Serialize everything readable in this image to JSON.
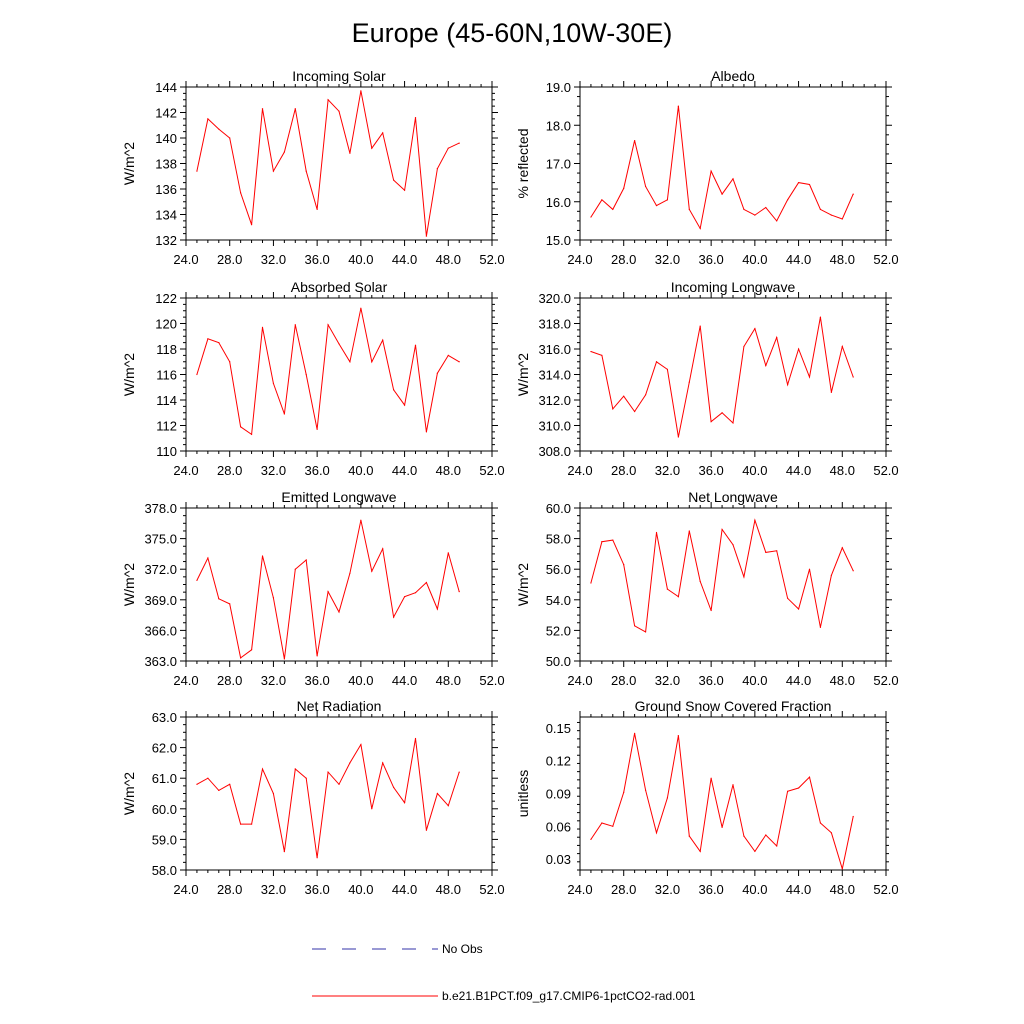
{
  "page": {
    "title": "Europe (45-60N,10W-30E)"
  },
  "legend": {
    "items": [
      {
        "label": "No Obs",
        "color": "#3333aa",
        "style": "dashed"
      },
      {
        "label": "b.e21.B1PCT.f09_g17.CMIP6-1pctCO2-rad.001",
        "color": "#ff0000",
        "style": "solid"
      }
    ]
  },
  "chart_data": [
    {
      "type": "line",
      "title": "Incoming Solar",
      "ylabel": "W/m^2",
      "xlim": [
        24,
        52
      ],
      "ylim": [
        132,
        144
      ],
      "xticks": [
        "24.0",
        "28.0",
        "32.0",
        "36.0",
        "40.0",
        "44.0",
        "48.0",
        "52.0"
      ],
      "yticks": [
        "132",
        "134",
        "136",
        "138",
        "140",
        "142",
        "144"
      ],
      "series": [
        {
          "color": "#ff0000",
          "x": [
            25,
            26,
            27,
            28,
            29,
            30,
            31,
            32,
            33,
            34,
            35,
            36,
            37,
            38,
            39,
            40,
            41,
            42,
            43,
            44,
            45,
            46,
            47,
            48,
            49
          ],
          "y": [
            137.4,
            141.5,
            140.7,
            140.0,
            135.7,
            133.2,
            142.3,
            137.4,
            138.9,
            142.3,
            137.4,
            134.4,
            143.0,
            142.1,
            138.8,
            143.7,
            139.2,
            140.4,
            136.7,
            135.9,
            141.6,
            132.3,
            137.6,
            139.2,
            139.6
          ]
        }
      ]
    },
    {
      "type": "line",
      "title": "Albedo",
      "ylabel": "% reflected",
      "xlim": [
        24,
        52
      ],
      "ylim": [
        15,
        19
      ],
      "xticks": [
        "24.0",
        "28.0",
        "32.0",
        "36.0",
        "40.0",
        "44.0",
        "48.0",
        "52.0"
      ],
      "yticks": [
        "15.0",
        "16.0",
        "17.0",
        "18.0",
        "19.0"
      ],
      "series": [
        {
          "color": "#ff0000",
          "x": [
            25,
            26,
            27,
            28,
            29,
            30,
            31,
            32,
            33,
            34,
            35,
            36,
            37,
            38,
            39,
            40,
            41,
            42,
            43,
            44,
            45,
            46,
            47,
            48,
            49
          ],
          "y": [
            15.6,
            16.05,
            15.8,
            16.35,
            17.6,
            16.4,
            15.9,
            16.05,
            18.5,
            15.8,
            15.3,
            16.8,
            16.2,
            16.6,
            15.8,
            15.65,
            15.85,
            15.5,
            16.05,
            16.5,
            16.45,
            15.8,
            15.65,
            15.55,
            16.2
          ]
        }
      ]
    },
    {
      "type": "line",
      "title": "Absorbed Solar",
      "ylabel": "W/m^2",
      "xlim": [
        24,
        52
      ],
      "ylim": [
        110,
        122
      ],
      "xticks": [
        "24.0",
        "28.0",
        "32.0",
        "36.0",
        "40.0",
        "44.0",
        "48.0",
        "52.0"
      ],
      "yticks": [
        "110",
        "112",
        "114",
        "116",
        "118",
        "120",
        "122"
      ],
      "series": [
        {
          "color": "#ff0000",
          "x": [
            25,
            26,
            27,
            28,
            29,
            30,
            31,
            32,
            33,
            34,
            35,
            36,
            37,
            38,
            39,
            40,
            41,
            42,
            43,
            44,
            45,
            46,
            47,
            48,
            49
          ],
          "y": [
            116.0,
            118.8,
            118.5,
            117.0,
            111.9,
            111.3,
            119.7,
            115.3,
            112.9,
            119.9,
            116.0,
            111.7,
            119.9,
            118.4,
            117.0,
            121.2,
            117.0,
            118.7,
            114.8,
            113.6,
            118.3,
            111.5,
            116.1,
            117.5,
            117.0
          ]
        }
      ]
    },
    {
      "type": "line",
      "title": "Incoming Longwave",
      "ylabel": "W/m^2",
      "xlim": [
        24,
        52
      ],
      "ylim": [
        308,
        320
      ],
      "xticks": [
        "24.0",
        "28.0",
        "32.0",
        "36.0",
        "40.0",
        "44.0",
        "48.0",
        "52.0"
      ],
      "yticks": [
        "308.0",
        "310.0",
        "312.0",
        "314.0",
        "316.0",
        "318.0",
        "320.0"
      ],
      "series": [
        {
          "color": "#ff0000",
          "x": [
            25,
            26,
            27,
            28,
            29,
            30,
            31,
            32,
            33,
            34,
            35,
            36,
            37,
            38,
            39,
            40,
            41,
            42,
            43,
            44,
            45,
            46,
            47,
            48,
            49
          ],
          "y": [
            315.8,
            315.5,
            311.3,
            312.3,
            311.1,
            312.4,
            315.0,
            314.4,
            309.1,
            313.4,
            317.8,
            310.3,
            311.0,
            310.2,
            316.2,
            317.6,
            314.7,
            316.9,
            313.2,
            316.0,
            313.8,
            318.5,
            312.6,
            316.2,
            313.8
          ]
        }
      ]
    },
    {
      "type": "line",
      "title": "Emitted Longwave",
      "ylabel": "W/m^2",
      "xlim": [
        24,
        52
      ],
      "ylim": [
        363,
        378
      ],
      "xticks": [
        "24.0",
        "28.0",
        "32.0",
        "36.0",
        "40.0",
        "44.0",
        "48.0",
        "52.0"
      ],
      "yticks": [
        "363.0",
        "366.0",
        "369.0",
        "372.0",
        "375.0",
        "378.0"
      ],
      "series": [
        {
          "color": "#ff0000",
          "x": [
            25,
            26,
            27,
            28,
            29,
            30,
            31,
            32,
            33,
            34,
            35,
            36,
            37,
            38,
            39,
            40,
            41,
            42,
            43,
            44,
            45,
            46,
            47,
            48,
            49
          ],
          "y": [
            370.9,
            373.1,
            369.1,
            368.6,
            363.3,
            364.1,
            373.3,
            369.2,
            363.2,
            372.0,
            372.9,
            363.5,
            369.8,
            367.8,
            371.6,
            376.8,
            371.8,
            374.0,
            367.3,
            369.3,
            369.7,
            370.7,
            368.1,
            373.6,
            369.8
          ]
        }
      ]
    },
    {
      "type": "line",
      "title": "Net Longwave",
      "ylabel": "W/m^2",
      "xlim": [
        24,
        52
      ],
      "ylim": [
        50,
        60
      ],
      "xticks": [
        "24.0",
        "28.0",
        "32.0",
        "36.0",
        "40.0",
        "44.0",
        "48.0",
        "52.0"
      ],
      "yticks": [
        "50.0",
        "52.0",
        "54.0",
        "56.0",
        "58.0",
        "60.0"
      ],
      "series": [
        {
          "color": "#ff0000",
          "x": [
            25,
            26,
            27,
            28,
            29,
            30,
            31,
            32,
            33,
            34,
            35,
            36,
            37,
            38,
            39,
            40,
            41,
            42,
            43,
            44,
            45,
            46,
            47,
            48,
            49
          ],
          "y": [
            55.1,
            57.8,
            57.9,
            56.3,
            52.3,
            51.9,
            58.4,
            54.7,
            54.2,
            58.5,
            55.2,
            53.3,
            58.6,
            57.6,
            55.5,
            59.2,
            57.1,
            57.2,
            54.1,
            53.4,
            56.0,
            52.2,
            55.6,
            57.4,
            55.9
          ]
        }
      ]
    },
    {
      "type": "line",
      "title": "Net Radiation",
      "ylabel": "W/m^2",
      "xlim": [
        24,
        52
      ],
      "ylim": [
        58,
        63
      ],
      "xticks": [
        "24.0",
        "28.0",
        "32.0",
        "36.0",
        "40.0",
        "44.0",
        "48.0",
        "52.0"
      ],
      "yticks": [
        "58.0",
        "59.0",
        "60.0",
        "61.0",
        "62.0",
        "63.0"
      ],
      "series": [
        {
          "color": "#ff0000",
          "x": [
            25,
            26,
            27,
            28,
            29,
            30,
            31,
            32,
            33,
            34,
            35,
            36,
            37,
            38,
            39,
            40,
            41,
            42,
            43,
            44,
            45,
            46,
            47,
            48,
            49
          ],
          "y": [
            60.8,
            61.0,
            60.6,
            60.8,
            59.5,
            59.5,
            61.3,
            60.5,
            58.6,
            61.3,
            61.0,
            58.4,
            61.2,
            60.8,
            61.5,
            62.1,
            60.0,
            61.5,
            60.7,
            60.2,
            62.3,
            59.3,
            60.5,
            60.1,
            61.2
          ]
        }
      ]
    },
    {
      "type": "line",
      "title": "Ground Snow Covered Fraction",
      "ylabel": "unitless",
      "xlim": [
        24,
        52
      ],
      "ylim": [
        0.02,
        0.16
      ],
      "xticks": [
        "24.0",
        "28.0",
        "32.0",
        "36.0",
        "40.0",
        "44.0",
        "48.0",
        "52.0"
      ],
      "yticks": [
        "0.03",
        "0.06",
        "0.09",
        "0.12",
        "0.15"
      ],
      "ytickvalues": [
        0.03,
        0.06,
        0.09,
        0.12,
        0.15
      ],
      "series": [
        {
          "color": "#ff0000",
          "x": [
            25,
            26,
            27,
            28,
            29,
            30,
            31,
            32,
            33,
            34,
            35,
            36,
            37,
            38,
            39,
            40,
            41,
            42,
            43,
            44,
            45,
            46,
            47,
            48,
            49
          ],
          "y": [
            0.048,
            0.063,
            0.06,
            0.091,
            0.145,
            0.093,
            0.054,
            0.086,
            0.143,
            0.051,
            0.037,
            0.104,
            0.059,
            0.098,
            0.051,
            0.037,
            0.052,
            0.042,
            0.092,
            0.095,
            0.105,
            0.063,
            0.054,
            0.021,
            0.069
          ]
        }
      ]
    }
  ]
}
